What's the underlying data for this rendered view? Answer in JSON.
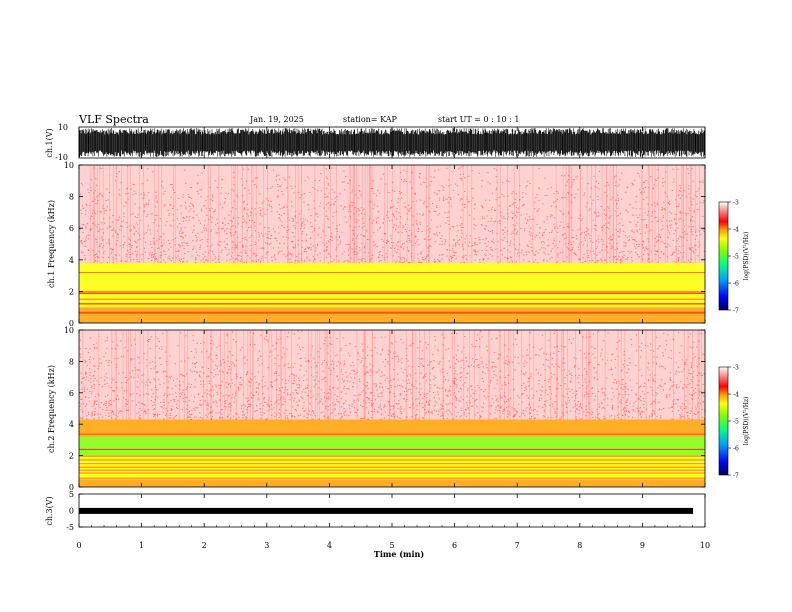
{
  "header": {
    "title": "VLF Spectra",
    "date": "Jan. 19, 2025",
    "station": "station= KAP",
    "start": "start UT =   0 : 10 : 1"
  },
  "chart_data": [
    {
      "type": "line",
      "panel": "ch1-waveform",
      "ylabel": "ch.1(V)",
      "ylim": [
        -10,
        10
      ],
      "yticks": [
        "10",
        "-10"
      ],
      "xlim": [
        0,
        10
      ],
      "note_values": "dense black waveform, visually saturated between about -10 and 10 V"
    },
    {
      "type": "heatmap",
      "panel": "ch1-spectrogram",
      "ylabel": "ch.1 Frequency (kHz)",
      "ylim": [
        0,
        10
      ],
      "yticks": [
        "0",
        "2",
        "4",
        "6",
        "8",
        "10"
      ],
      "xlim": [
        0,
        10
      ],
      "bands_log_psd": [
        {
          "from_khz": 0.0,
          "to_khz": 0.4,
          "level": -4.0
        },
        {
          "from_khz": 0.4,
          "to_khz": 1.0,
          "level": -4.2
        },
        {
          "from_khz": 1.0,
          "to_khz": 3.2,
          "level": -4.6
        },
        {
          "from_khz": 3.2,
          "to_khz": 3.8,
          "level": -4.4
        },
        {
          "from_khz": 3.8,
          "to_khz": 10.0,
          "level": -3.6
        }
      ],
      "colorbar": {
        "label": "log(PSD)(V²/Hz)",
        "min": -7,
        "max": -3,
        "ticks": [
          "-3",
          "-4",
          "-5",
          "-6",
          "-7"
        ]
      }
    },
    {
      "type": "heatmap",
      "panel": "ch2-spectrogram",
      "ylabel": "ch.2 Frequency (kHz)",
      "ylim": [
        0,
        10
      ],
      "yticks": [
        "0",
        "2",
        "4",
        "6",
        "8",
        "10"
      ],
      "xlim": [
        0,
        10
      ],
      "bands_log_psd": [
        {
          "from_khz": 0.0,
          "to_khz": 0.5,
          "level": -4.0
        },
        {
          "from_khz": 0.5,
          "to_khz": 1.6,
          "level": -4.7
        },
        {
          "from_khz": 1.6,
          "to_khz": 2.0,
          "level": -4.4
        },
        {
          "from_khz": 2.0,
          "to_khz": 3.2,
          "level": -5.0
        },
        {
          "from_khz": 3.2,
          "to_khz": 4.3,
          "level": -4.0
        },
        {
          "from_khz": 4.3,
          "to_khz": 10.0,
          "level": -3.6
        }
      ],
      "colorbar": {
        "label": "log(PSD)(V²/Hz)",
        "min": -7,
        "max": -3,
        "ticks": [
          "-3",
          "-4",
          "-5",
          "-6",
          "-7"
        ]
      }
    },
    {
      "type": "line",
      "panel": "ch3-waveform",
      "ylabel": "ch.3(V)",
      "ylim": [
        -5,
        5
      ],
      "yticks": [
        "5",
        "0",
        "-5"
      ],
      "xlim": [
        0,
        10
      ],
      "note_values": "narrow black band centred near 0 V"
    }
  ],
  "xaxis": {
    "label": "Time (min)",
    "ticks": [
      "0",
      "1",
      "2",
      "3",
      "4",
      "5",
      "6",
      "7",
      "8",
      "9",
      "10"
    ]
  },
  "colors": {
    "colormap": [
      "#000080",
      "#0000ff",
      "#00a0ff",
      "#00ff80",
      "#80ff00",
      "#ffff00",
      "#ffa000",
      "#ff0000",
      "#ffffff"
    ],
    "ink": "#000000"
  }
}
